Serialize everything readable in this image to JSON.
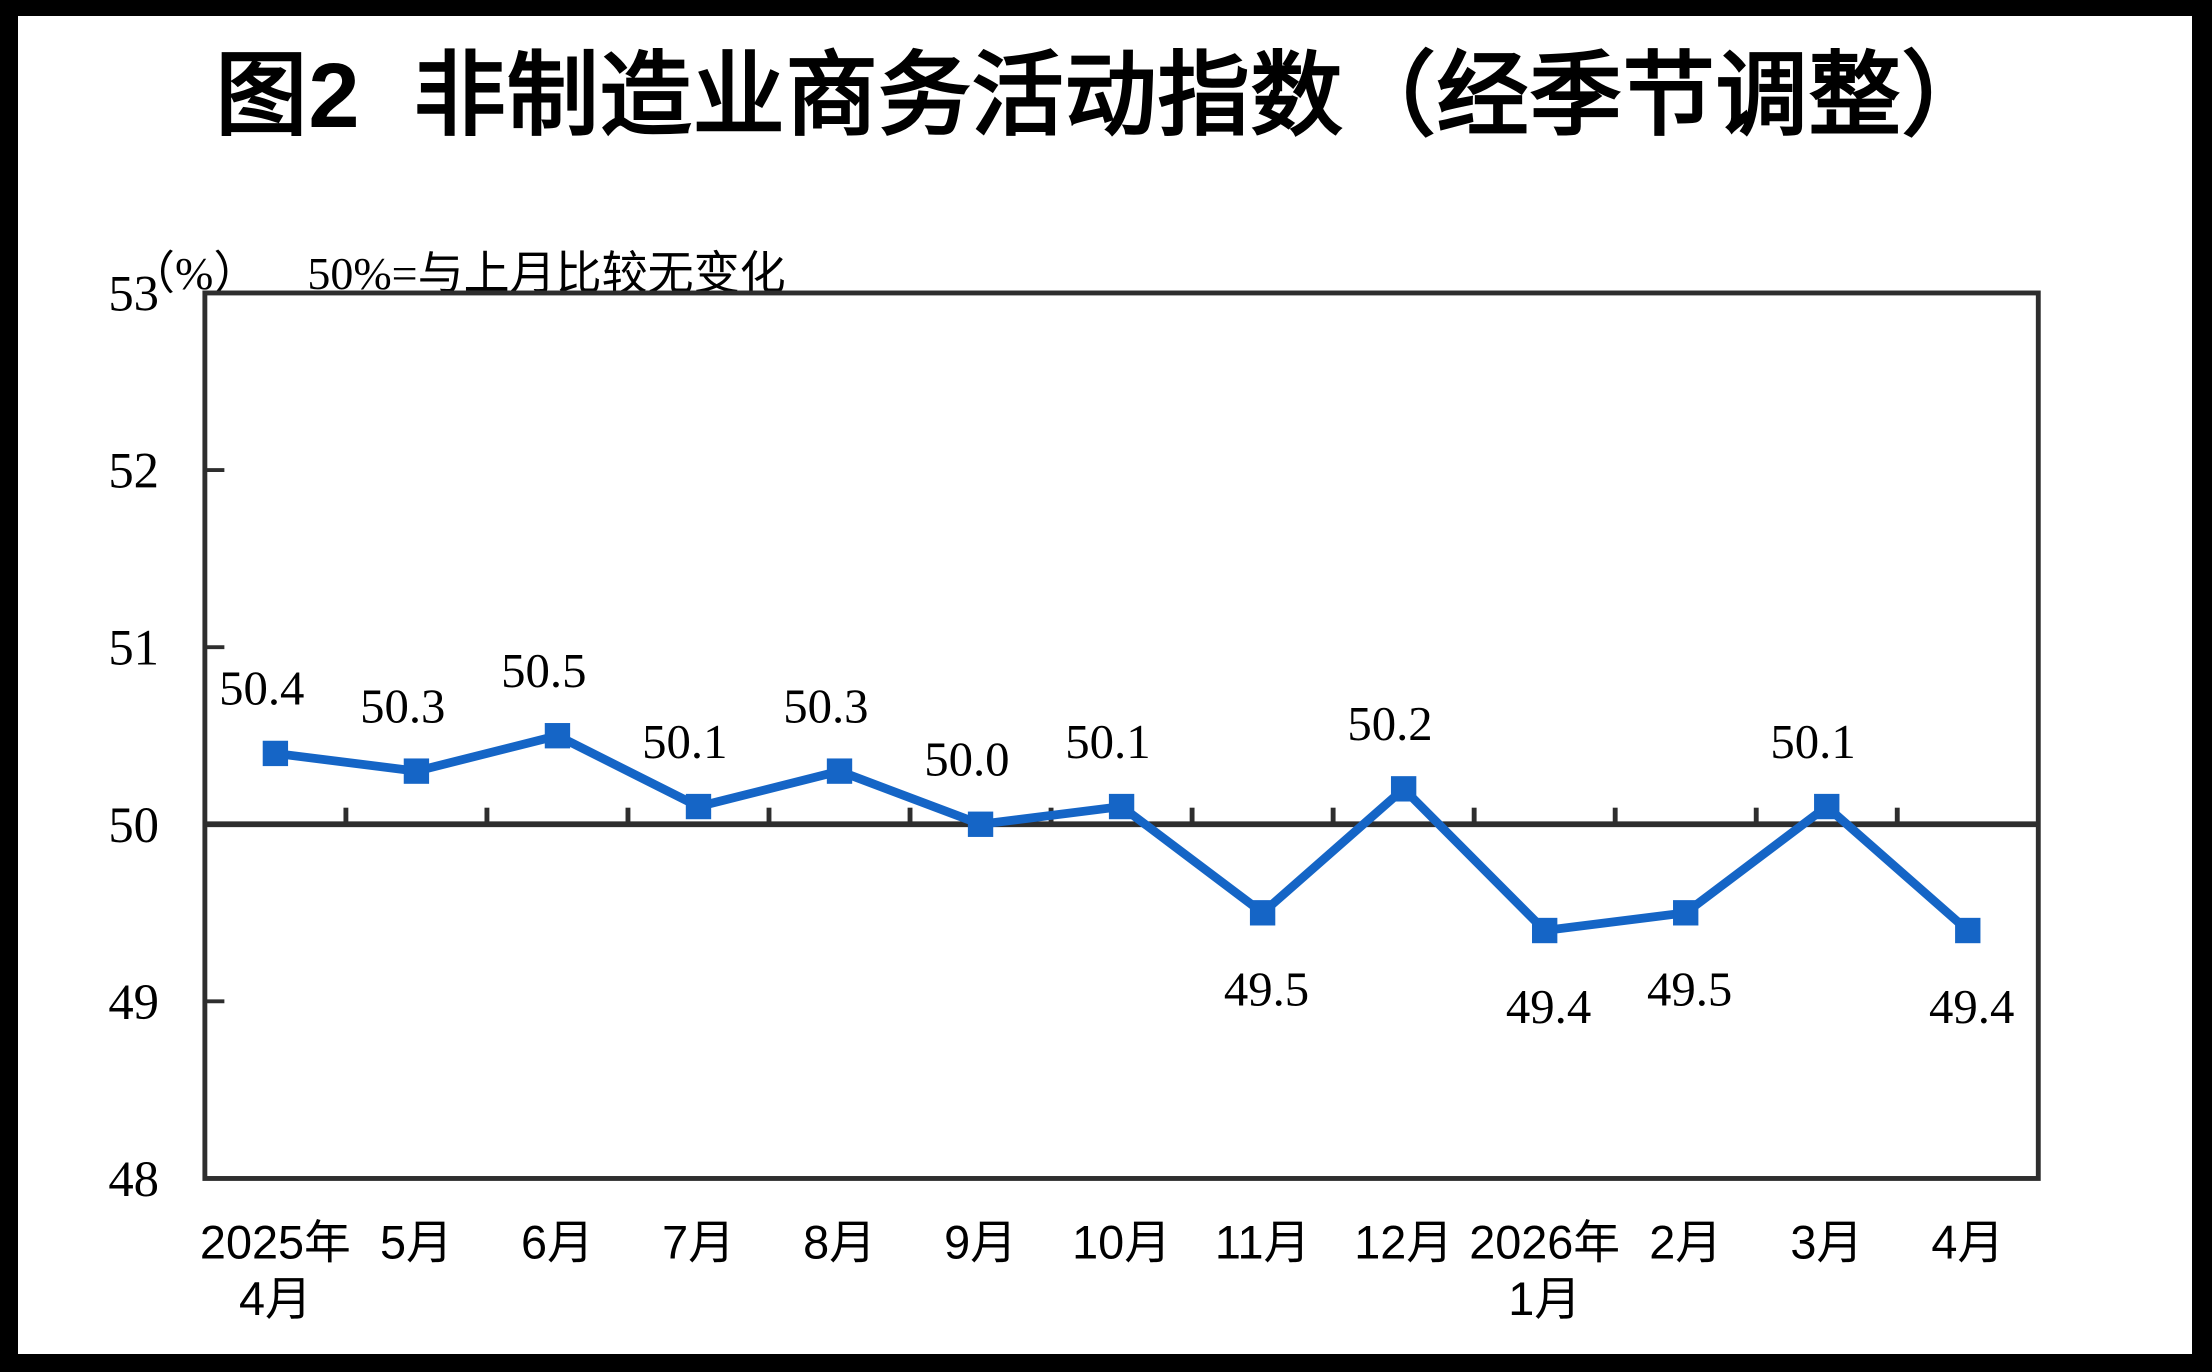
{
  "page": {
    "background_color": "#ffffff",
    "frame_color": "#000000"
  },
  "chart": {
    "title": "图2  非制造业商务活动指数（经季节调整）",
    "unit_label": "（%）",
    "reference_note": "50%=与上月比较无变化"
  },
  "chart_data": {
    "type": "line",
    "title": "图2 非制造业商务活动指数（经季节调整）",
    "subtitle": "（%） 50%=与上月比较无变化",
    "categories": [
      [
        "2025年",
        "4月"
      ],
      [
        "5月"
      ],
      [
        "6月"
      ],
      [
        "7月"
      ],
      [
        "8月"
      ],
      [
        "9月"
      ],
      [
        "10月"
      ],
      [
        "11月"
      ],
      [
        "12月"
      ],
      [
        "2026年",
        "1月"
      ],
      [
        "2月"
      ],
      [
        "3月"
      ],
      [
        "4月"
      ]
    ],
    "series": [
      {
        "name": "非制造业商务活动指数（经季节调整）",
        "values": [
          50.4,
          50.3,
          50.5,
          50.1,
          50.3,
          50.0,
          50.1,
          49.5,
          50.2,
          49.4,
          49.5,
          50.1,
          49.4
        ],
        "value_labels": [
          "50.4",
          "50.3",
          "50.5",
          "50.1",
          "50.3",
          "50.0",
          "50.1",
          "49.5",
          "50.2",
          "49.4",
          "49.5",
          "50.1",
          "49.4"
        ]
      }
    ],
    "xlabel": "",
    "ylabel": "（%）",
    "ylim": [
      48,
      53
    ],
    "y_ticks": [
      53,
      52,
      51,
      50,
      49,
      48
    ],
    "reference_line": 50,
    "grid": "off",
    "legend": "none",
    "marker": "square",
    "line_color": "#1565c6",
    "marker_color": "#1565c6",
    "axis_color": "#2e2e2e",
    "label_color": "#000000"
  }
}
